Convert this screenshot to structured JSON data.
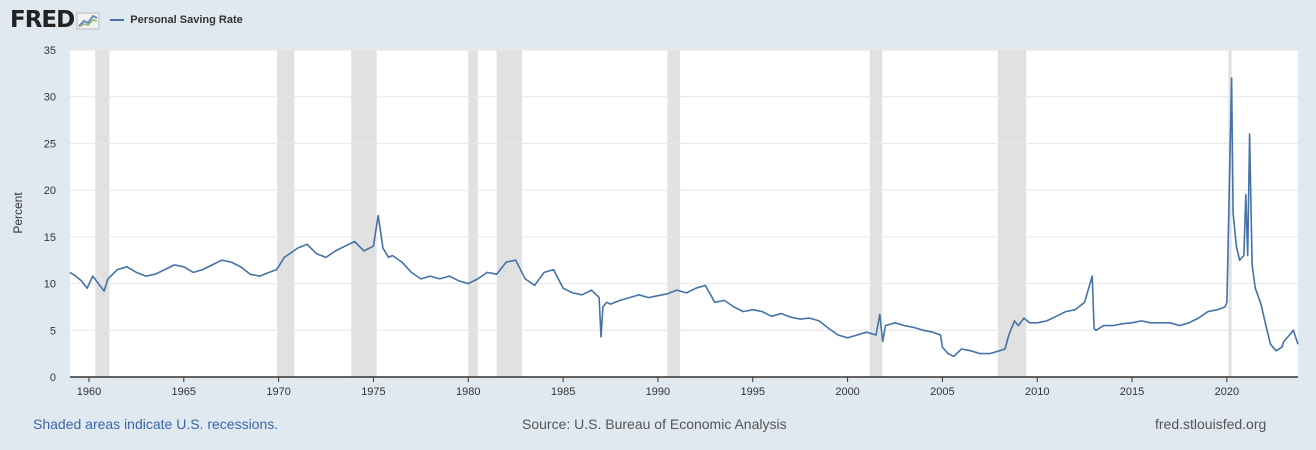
{
  "header": {
    "logo_text": "FRED",
    "logo_icon": "line-chart-icon",
    "legend_label": "Personal Saving Rate",
    "series_color": "#4572a7"
  },
  "footer": {
    "recession_note": "Shaded areas indicate U.S. recessions.",
    "source": "Source: U.S. Bureau of Economic Analysis",
    "site": "fred.stlouisfed.org"
  },
  "chart_data": {
    "type": "line",
    "title": "",
    "xlabel": "",
    "ylabel": "Percent",
    "xlim": [
      1959.0,
      2023.75
    ],
    "ylim": [
      0,
      35
    ],
    "yticks": [
      0,
      5,
      10,
      15,
      20,
      25,
      30,
      35
    ],
    "xticks": [
      1960,
      1965,
      1970,
      1975,
      1980,
      1985,
      1990,
      1995,
      2000,
      2005,
      2010,
      2015,
      2020
    ],
    "grid": true,
    "legend_position": "top-left",
    "recession_color": "#e1e1e1",
    "recessions": [
      [
        1960.33,
        1961.08
      ],
      [
        1969.92,
        1970.83
      ],
      [
        1973.83,
        1975.17
      ],
      [
        1980.0,
        1980.5
      ],
      [
        1981.5,
        1982.83
      ],
      [
        1990.5,
        1991.17
      ],
      [
        2001.17,
        2001.83
      ],
      [
        2007.92,
        2009.42
      ],
      [
        2020.08,
        2020.25
      ]
    ],
    "series": [
      {
        "name": "Personal Saving Rate",
        "color": "#4572a7",
        "x": [
          1959.0,
          1959.3,
          1959.6,
          1959.9,
          1960.2,
          1960.5,
          1960.8,
          1961.0,
          1961.5,
          1962.0,
          1962.5,
          1963.0,
          1963.5,
          1964.0,
          1964.5,
          1965.0,
          1965.5,
          1966.0,
          1966.5,
          1967.0,
          1967.5,
          1968.0,
          1968.5,
          1969.0,
          1969.5,
          1969.9,
          1970.3,
          1970.8,
          1971.0,
          1971.5,
          1972.0,
          1972.5,
          1973.0,
          1973.5,
          1974.0,
          1974.5,
          1975.0,
          1975.25,
          1975.5,
          1975.8,
          1976.0,
          1976.5,
          1977.0,
          1977.5,
          1978.0,
          1978.5,
          1979.0,
          1979.5,
          1980.0,
          1980.5,
          1981.0,
          1981.5,
          1982.0,
          1982.5,
          1983.0,
          1983.5,
          1984.0,
          1984.5,
          1985.0,
          1985.5,
          1986.0,
          1986.5,
          1986.9,
          1987.0,
          1987.1,
          1987.3,
          1987.5,
          1988.0,
          1988.5,
          1989.0,
          1989.5,
          1990.0,
          1990.5,
          1991.0,
          1991.5,
          1992.0,
          1992.5,
          1993.0,
          1993.5,
          1994.0,
          1994.5,
          1995.0,
          1995.5,
          1996.0,
          1996.5,
          1997.0,
          1997.5,
          1998.0,
          1998.5,
          1999.0,
          1999.5,
          2000.0,
          2000.5,
          2001.0,
          2001.5,
          2001.7,
          2001.85,
          2002.0,
          2002.5,
          2003.0,
          2003.5,
          2004.0,
          2004.5,
          2004.9,
          2005.0,
          2005.3,
          2005.6,
          2006.0,
          2006.5,
          2007.0,
          2007.5,
          2008.0,
          2008.3,
          2008.5,
          2008.8,
          2009.0,
          2009.3,
          2009.6,
          2010.0,
          2010.5,
          2011.0,
          2011.5,
          2012.0,
          2012.5,
          2012.9,
          2013.0,
          2013.1,
          2013.5,
          2014.0,
          2014.5,
          2015.0,
          2015.5,
          2016.0,
          2016.5,
          2017.0,
          2017.5,
          2018.0,
          2018.5,
          2019.0,
          2019.5,
          2019.9,
          2020.0,
          2020.25,
          2020.33,
          2020.5,
          2020.67,
          2020.9,
          2021.0,
          2021.1,
          2021.2,
          2021.33,
          2021.5,
          2021.8,
          2022.0,
          2022.3,
          2022.6,
          2022.9,
          2023.0,
          2023.3,
          2023.5,
          2023.75
        ],
        "values": [
          11.2,
          10.8,
          10.3,
          9.5,
          10.8,
          10.0,
          9.2,
          10.5,
          11.5,
          11.8,
          11.2,
          10.8,
          11.0,
          11.5,
          12.0,
          11.8,
          11.2,
          11.5,
          12.0,
          12.5,
          12.3,
          11.8,
          11.0,
          10.8,
          11.2,
          11.5,
          12.8,
          13.5,
          13.8,
          14.2,
          13.2,
          12.8,
          13.5,
          14.0,
          14.5,
          13.5,
          14.0,
          17.3,
          13.8,
          12.8,
          13.0,
          12.3,
          11.2,
          10.5,
          10.8,
          10.5,
          10.8,
          10.3,
          10.0,
          10.5,
          11.2,
          11.0,
          12.3,
          12.5,
          10.5,
          9.8,
          11.2,
          11.5,
          9.5,
          9.0,
          8.8,
          9.3,
          8.5,
          4.3,
          7.5,
          8.0,
          7.8,
          8.2,
          8.5,
          8.8,
          8.5,
          8.7,
          8.9,
          9.3,
          9.0,
          9.5,
          9.8,
          8.0,
          8.2,
          7.5,
          7.0,
          7.2,
          7.0,
          6.5,
          6.8,
          6.4,
          6.2,
          6.3,
          6.0,
          5.2,
          4.5,
          4.2,
          4.5,
          4.8,
          4.5,
          6.7,
          3.8,
          5.5,
          5.8,
          5.5,
          5.3,
          5.0,
          4.8,
          4.5,
          3.2,
          2.5,
          2.2,
          3.0,
          2.8,
          2.5,
          2.5,
          2.8,
          3.0,
          4.5,
          6.0,
          5.5,
          6.3,
          5.8,
          5.8,
          6.0,
          6.5,
          7.0,
          7.2,
          8.0,
          10.8,
          5.2,
          5.0,
          5.5,
          5.5,
          5.7,
          5.8,
          6.0,
          5.8,
          5.8,
          5.8,
          5.5,
          5.8,
          6.3,
          7.0,
          7.2,
          7.5,
          8.0,
          32.0,
          17.5,
          14.0,
          12.5,
          13.0,
          19.5,
          13.0,
          26.0,
          12.0,
          9.5,
          7.8,
          6.0,
          3.5,
          2.8,
          3.2,
          3.8,
          4.5,
          5.0,
          3.5
        ]
      }
    ]
  }
}
